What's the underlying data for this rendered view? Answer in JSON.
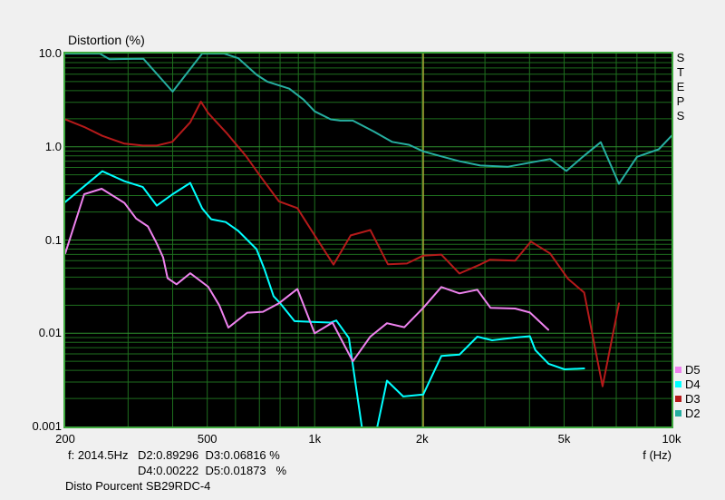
{
  "title": "Distortion (%)",
  "steps_label": "STEPS",
  "axis": {
    "x_unit_label": "f (Hz)",
    "x_ticks": [
      {
        "f": 200,
        "label": "200"
      },
      {
        "f": 500,
        "label": "500"
      },
      {
        "f": 1000,
        "label": "1k"
      },
      {
        "f": 2000,
        "label": "2k"
      },
      {
        "f": 5000,
        "label": "5k"
      },
      {
        "f": 10000,
        "label": "10k"
      }
    ],
    "y_ticks": [
      {
        "v": 10,
        "label": "10.0"
      },
      {
        "v": 1,
        "label": "1.0"
      },
      {
        "v": 0.1,
        "label": "0.1"
      },
      {
        "v": 0.01,
        "label": "0.01"
      },
      {
        "v": 0.001,
        "label": "0.001"
      }
    ]
  },
  "cursor": {
    "freq_hz": 2014.5,
    "readout_label": "f: 2014.5Hz"
  },
  "readout": {
    "line1": "D2:0.89296  D3:0.06816 %",
    "line2": "D4:0.00222  D5:0.01873   %"
  },
  "caption": "Disto Pourcent SB29RDC-4",
  "legend": [
    {
      "name": "D5",
      "color": "#EE82EE"
    },
    {
      "name": "D4",
      "color": "#00FFFF"
    },
    {
      "name": "D3",
      "color": "#B51A1A"
    },
    {
      "name": "D2",
      "color": "#26AEA0"
    }
  ],
  "colors": {
    "page_bg": "#F0F0F0",
    "plot_bg": "#000000",
    "grid_minor": "#1E6E1E",
    "grid_major": "#2E8E2E",
    "plot_border": "#3EA83E",
    "cursor_line": "#A8A834",
    "text": "#111111"
  },
  "chart_data": {
    "type": "line",
    "title": "Distortion (%)",
    "xlabel": "f (Hz)",
    "ylabel": "Distortion (%)",
    "x_scale": "log",
    "y_scale": "log",
    "xlim": [
      200,
      10000
    ],
    "ylim": [
      0.001,
      10
    ],
    "grid": true,
    "legend_position": "right-bottom",
    "cursor_freq_hz": 2014.5,
    "cursor_values": {
      "D2": 0.89296,
      "D3": 0.06816,
      "D4": 0.00222,
      "D5": 0.01873
    },
    "series": [
      {
        "name": "D2",
        "color": "#26AEA0",
        "points": [
          [
            200,
            10
          ],
          [
            250,
            10
          ],
          [
            266,
            8.7
          ],
          [
            331,
            8.8
          ],
          [
            400,
            3.9
          ],
          [
            484,
            10
          ],
          [
            558,
            10
          ],
          [
            611,
            8.9
          ],
          [
            688,
            5.9
          ],
          [
            736,
            5.0
          ],
          [
            849,
            4.2
          ],
          [
            931,
            3.2
          ],
          [
            1000,
            2.4
          ],
          [
            1109,
            1.97
          ],
          [
            1180,
            1.91
          ],
          [
            1279,
            1.91
          ],
          [
            1464,
            1.46
          ],
          [
            1646,
            1.13
          ],
          [
            1840,
            1.05
          ],
          [
            2014,
            0.893
          ],
          [
            2264,
            0.79
          ],
          [
            2546,
            0.7
          ],
          [
            2912,
            0.63
          ],
          [
            3470,
            0.61
          ],
          [
            4567,
            0.74
          ],
          [
            5075,
            0.55
          ],
          [
            5640,
            0.78
          ],
          [
            6333,
            1.12
          ],
          [
            7122,
            0.4
          ],
          [
            8005,
            0.78
          ],
          [
            9210,
            0.94
          ],
          [
            10000,
            1.31
          ]
        ]
      },
      {
        "name": "D3",
        "color": "#B51A1A",
        "points": [
          [
            200,
            1.97
          ],
          [
            226,
            1.63
          ],
          [
            254,
            1.31
          ],
          [
            293,
            1.08
          ],
          [
            330,
            1.03
          ],
          [
            361,
            1.03
          ],
          [
            399,
            1.13
          ],
          [
            448,
            1.83
          ],
          [
            480,
            3.05
          ],
          [
            503,
            2.3
          ],
          [
            566,
            1.41
          ],
          [
            641,
            0.8
          ],
          [
            700,
            0.5
          ],
          [
            794,
            0.26
          ],
          [
            894,
            0.22
          ],
          [
            1000,
            0.112
          ],
          [
            1129,
            0.0545
          ],
          [
            1262,
            0.112
          ],
          [
            1432,
            0.128
          ],
          [
            1604,
            0.055
          ],
          [
            1813,
            0.056
          ],
          [
            2014,
            0.068
          ],
          [
            2264,
            0.0697
          ],
          [
            2546,
            0.0437
          ],
          [
            2912,
            0.0547
          ],
          [
            3095,
            0.0614
          ],
          [
            3645,
            0.06
          ],
          [
            4036,
            0.0963
          ],
          [
            4567,
            0.0718
          ],
          [
            5131,
            0.0382
          ],
          [
            5690,
            0.0273
          ],
          [
            6408,
            0.0027
          ],
          [
            7122,
            0.0209
          ]
        ]
      },
      {
        "name": "D4",
        "color": "#00FFFF",
        "points": [
          [
            200,
            0.256
          ],
          [
            254,
            0.547
          ],
          [
            293,
            0.427
          ],
          [
            330,
            0.37
          ],
          [
            361,
            0.234
          ],
          [
            400,
            0.31
          ],
          [
            448,
            0.409
          ],
          [
            484,
            0.218
          ],
          [
            513,
            0.167
          ],
          [
            563,
            0.156
          ],
          [
            611,
            0.125
          ],
          [
            687,
            0.08
          ],
          [
            724,
            0.048
          ],
          [
            767,
            0.025
          ],
          [
            800,
            0.021
          ],
          [
            878,
            0.0135
          ],
          [
            1000,
            0.0132
          ],
          [
            1109,
            0.013
          ],
          [
            1150,
            0.0137
          ],
          [
            1247,
            0.0089
          ],
          [
            1361,
            0.0009
          ],
          [
            1490,
            0.0009
          ],
          [
            1594,
            0.0031
          ],
          [
            1770,
            0.0021
          ],
          [
            2014,
            0.0022
          ],
          [
            2264,
            0.0057
          ],
          [
            2546,
            0.0059
          ],
          [
            2856,
            0.0092
          ],
          [
            3141,
            0.0084
          ],
          [
            3645,
            0.009
          ],
          [
            4009,
            0.0093
          ],
          [
            4153,
            0.0066
          ],
          [
            4525,
            0.0047
          ],
          [
            5014,
            0.0041
          ],
          [
            5690,
            0.0042
          ]
        ]
      },
      {
        "name": "D5",
        "color": "#EE82EE",
        "points": [
          [
            200,
            0.072
          ],
          [
            226,
            0.31
          ],
          [
            253,
            0.355
          ],
          [
            293,
            0.25
          ],
          [
            316,
            0.17
          ],
          [
            341,
            0.14
          ],
          [
            360,
            0.094
          ],
          [
            376,
            0.065
          ],
          [
            387,
            0.039
          ],
          [
            410,
            0.0335
          ],
          [
            448,
            0.044
          ],
          [
            503,
            0.0315
          ],
          [
            540,
            0.02
          ],
          [
            573,
            0.0115
          ],
          [
            647,
            0.0166
          ],
          [
            716,
            0.017
          ],
          [
            795,
            0.021
          ],
          [
            894,
            0.0299
          ],
          [
            1000,
            0.01
          ],
          [
            1122,
            0.013
          ],
          [
            1279,
            0.005
          ],
          [
            1432,
            0.0092
          ],
          [
            1594,
            0.0128
          ],
          [
            1784,
            0.0116
          ],
          [
            2014,
            0.0187
          ],
          [
            2264,
            0.0313
          ],
          [
            2546,
            0.0268
          ],
          [
            2856,
            0.0293
          ],
          [
            3111,
            0.0187
          ],
          [
            3645,
            0.0184
          ],
          [
            4009,
            0.0167
          ],
          [
            4514,
            0.0109
          ]
        ]
      }
    ]
  }
}
